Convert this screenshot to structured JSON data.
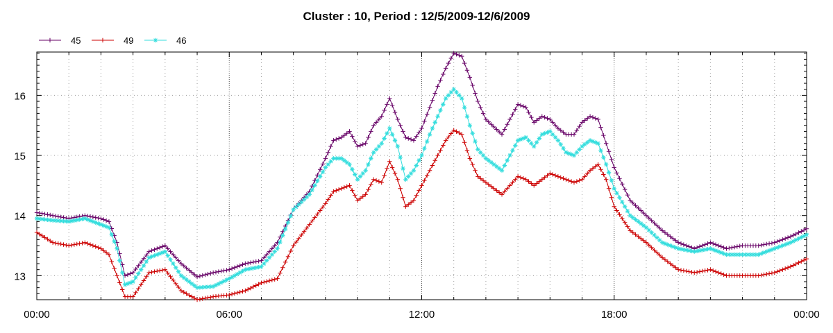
{
  "chart_data": {
    "type": "line",
    "title": "Cluster : 10, Period : 12/5/2009-12/6/2009",
    "xlabel": "",
    "ylabel": "",
    "x_ticks": [
      "00:00",
      "06:00",
      "12:00",
      "18:00",
      "00:00"
    ],
    "x_range_hours": [
      0,
      24
    ],
    "y_ticks": [
      "13",
      "14",
      "15",
      "16"
    ],
    "ylim": [
      12.6,
      16.72
    ],
    "grid": true,
    "legend": "top-left",
    "x_hours": [
      0,
      0.5,
      1,
      1.5,
      2,
      2.25,
      2.5,
      2.75,
      3,
      3.5,
      4,
      4.5,
      5,
      5.5,
      6,
      6.5,
      7,
      7.5,
      8,
      8.5,
      9,
      9.25,
      9.5,
      9.75,
      10,
      10.25,
      10.5,
      10.75,
      11,
      11.25,
      11.5,
      11.75,
      12,
      12.25,
      12.5,
      12.75,
      13,
      13.25,
      13.5,
      13.75,
      14,
      14.5,
      15,
      15.25,
      15.5,
      15.75,
      16,
      16.25,
      16.5,
      16.75,
      17,
      17.25,
      17.5,
      17.75,
      18,
      18.5,
      19,
      19.5,
      20,
      20.5,
      21,
      21.5,
      22,
      22.5,
      23,
      23.5,
      24
    ],
    "series": [
      {
        "name": "45",
        "color": "#660066",
        "marker": "plus",
        "values": [
          14.05,
          14.0,
          13.95,
          14.0,
          13.95,
          13.9,
          13.55,
          13.0,
          13.05,
          13.4,
          13.5,
          13.2,
          12.98,
          13.05,
          13.1,
          13.2,
          13.25,
          13.55,
          14.1,
          14.4,
          14.95,
          15.25,
          15.3,
          15.4,
          15.15,
          15.2,
          15.5,
          15.65,
          15.95,
          15.6,
          15.3,
          15.25,
          15.45,
          15.8,
          16.15,
          16.45,
          16.7,
          16.65,
          16.3,
          15.9,
          15.6,
          15.35,
          15.85,
          15.8,
          15.55,
          15.65,
          15.6,
          15.45,
          15.35,
          15.35,
          15.55,
          15.65,
          15.6,
          15.2,
          14.8,
          14.25,
          14.0,
          13.75,
          13.55,
          13.45,
          13.55,
          13.45,
          13.5,
          13.5,
          13.55,
          13.65,
          13.78
        ]
      },
      {
        "name": "49",
        "color": "#cc0000",
        "marker": "plus",
        "values": [
          13.72,
          13.55,
          13.5,
          13.55,
          13.45,
          13.35,
          13.0,
          12.65,
          12.65,
          13.05,
          13.1,
          12.75,
          12.6,
          12.65,
          12.68,
          12.75,
          12.88,
          12.95,
          13.5,
          13.85,
          14.2,
          14.4,
          14.45,
          14.5,
          14.25,
          14.35,
          14.6,
          14.55,
          14.9,
          14.6,
          14.15,
          14.25,
          14.5,
          14.75,
          15.0,
          15.25,
          15.42,
          15.35,
          14.95,
          14.65,
          14.55,
          14.35,
          14.65,
          14.6,
          14.5,
          14.6,
          14.7,
          14.65,
          14.6,
          14.55,
          14.6,
          14.75,
          14.85,
          14.6,
          14.15,
          13.75,
          13.55,
          13.3,
          13.1,
          13.05,
          13.1,
          13.0,
          13.0,
          13.0,
          13.05,
          13.15,
          13.28
        ]
      },
      {
        "name": "46",
        "color": "#33dddd",
        "marker": "asterisk",
        "values": [
          13.95,
          13.92,
          13.9,
          13.95,
          13.85,
          13.8,
          13.45,
          12.85,
          12.9,
          13.3,
          13.4,
          13.0,
          12.8,
          12.82,
          12.95,
          13.1,
          13.15,
          13.45,
          14.1,
          14.35,
          14.8,
          14.95,
          14.95,
          14.85,
          14.6,
          14.75,
          15.05,
          15.2,
          15.45,
          15.15,
          14.6,
          14.75,
          15.0,
          15.35,
          15.65,
          15.95,
          16.1,
          15.95,
          15.5,
          15.1,
          14.95,
          14.75,
          15.25,
          15.3,
          15.15,
          15.35,
          15.4,
          15.25,
          15.05,
          15.0,
          15.15,
          15.25,
          15.2,
          14.85,
          14.45,
          14.0,
          13.8,
          13.55,
          13.45,
          13.4,
          13.45,
          13.35,
          13.35,
          13.35,
          13.45,
          13.55,
          13.68
        ]
      }
    ]
  }
}
